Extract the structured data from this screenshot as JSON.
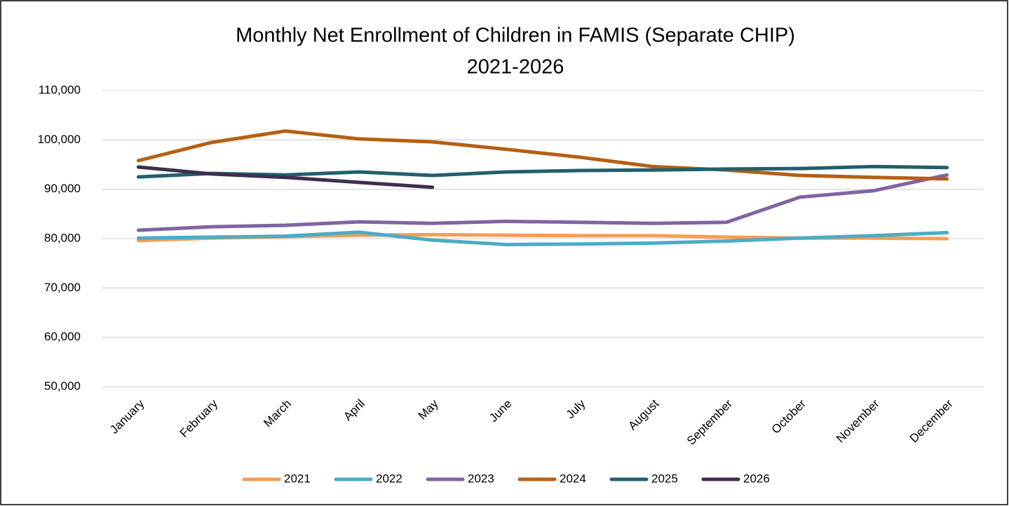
{
  "chart_data": {
    "type": "line",
    "title": "Monthly Net Enrollment of Children in FAMIS (Separate CHIP)",
    "subtitle": "2021-2026",
    "categories": [
      "January",
      "February",
      "March",
      "April",
      "May",
      "June",
      "July",
      "August",
      "September",
      "October",
      "November",
      "December"
    ],
    "series": [
      {
        "name": "2021",
        "color": "#f59d56",
        "values": [
          79600,
          80100,
          80400,
          80700,
          80800,
          80700,
          80600,
          80600,
          80300,
          80100,
          80100,
          80000
        ]
      },
      {
        "name": "2022",
        "color": "#4bacc6",
        "values": [
          80100,
          80300,
          80500,
          81300,
          79700,
          78800,
          78900,
          79100,
          79500,
          80100,
          80600,
          81200
        ]
      },
      {
        "name": "2023",
        "color": "#8064a2",
        "values": [
          81700,
          82400,
          82700,
          83400,
          83100,
          83500,
          83300,
          83100,
          83300,
          88400,
          89700,
          92900
        ]
      },
      {
        "name": "2024",
        "color": "#b65f12",
        "values": [
          95800,
          99500,
          101800,
          100200,
          99600,
          98100,
          96500,
          94600,
          93900,
          92800,
          92400,
          92100
        ]
      },
      {
        "name": "2025",
        "color": "#215f6b",
        "values": [
          92500,
          93200,
          92900,
          93500,
          92800,
          93500,
          93800,
          93900,
          94100,
          94200,
          94600,
          94400
        ]
      },
      {
        "name": "2026",
        "color": "#3f2e4f",
        "values": [
          94500,
          93100,
          92400,
          91400,
          90400,
          null,
          null,
          null,
          null,
          null,
          null,
          null
        ]
      }
    ],
    "ylim": [
      50000,
      110000
    ],
    "yticks": [
      {
        "value": 50000,
        "label": "50,000"
      },
      {
        "value": 60000,
        "label": "60,000"
      },
      {
        "value": 70000,
        "label": "70,000"
      },
      {
        "value": 80000,
        "label": "80,000"
      },
      {
        "value": 90000,
        "label": "90,000"
      },
      {
        "value": 100000,
        "label": "100,000"
      },
      {
        "value": 110000,
        "label": "110,000"
      }
    ],
    "grid": true,
    "legend": "bottom"
  }
}
